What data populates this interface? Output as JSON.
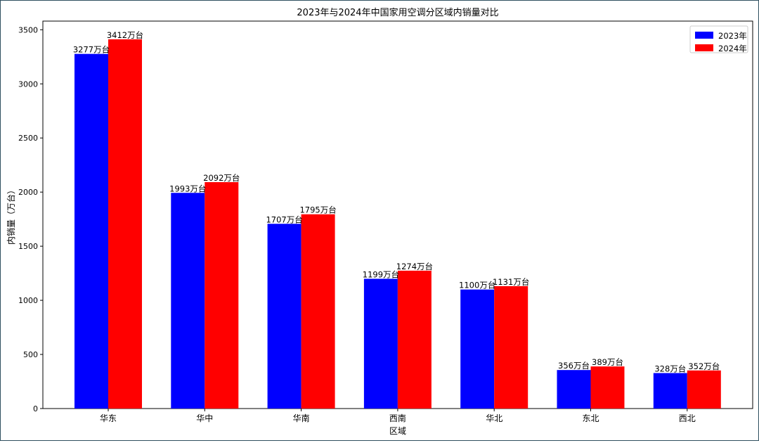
{
  "chart_data": {
    "type": "bar",
    "title": "2023年与2024年中国家用空调分区域内销量对比",
    "xlabel": "区域",
    "ylabel": "内销量（万台）",
    "categories": [
      "华东",
      "华中",
      "华南",
      "西南",
      "华北",
      "东北",
      "西北"
    ],
    "series": [
      {
        "name": "2023年",
        "color": "#0000ff",
        "values": [
          3277,
          1993,
          1707,
          1199,
          1100,
          356,
          328
        ]
      },
      {
        "name": "2024年",
        "color": "#ff0000",
        "values": [
          3412,
          2092,
          1795,
          1274,
          1131,
          389,
          352
        ]
      }
    ],
    "value_label_suffix": "万台",
    "ylim": [
      0,
      3580
    ],
    "yticks": [
      0,
      500,
      1000,
      1500,
      2000,
      2500,
      3000,
      3500
    ],
    "grid": false,
    "legend_position": "top-right"
  }
}
